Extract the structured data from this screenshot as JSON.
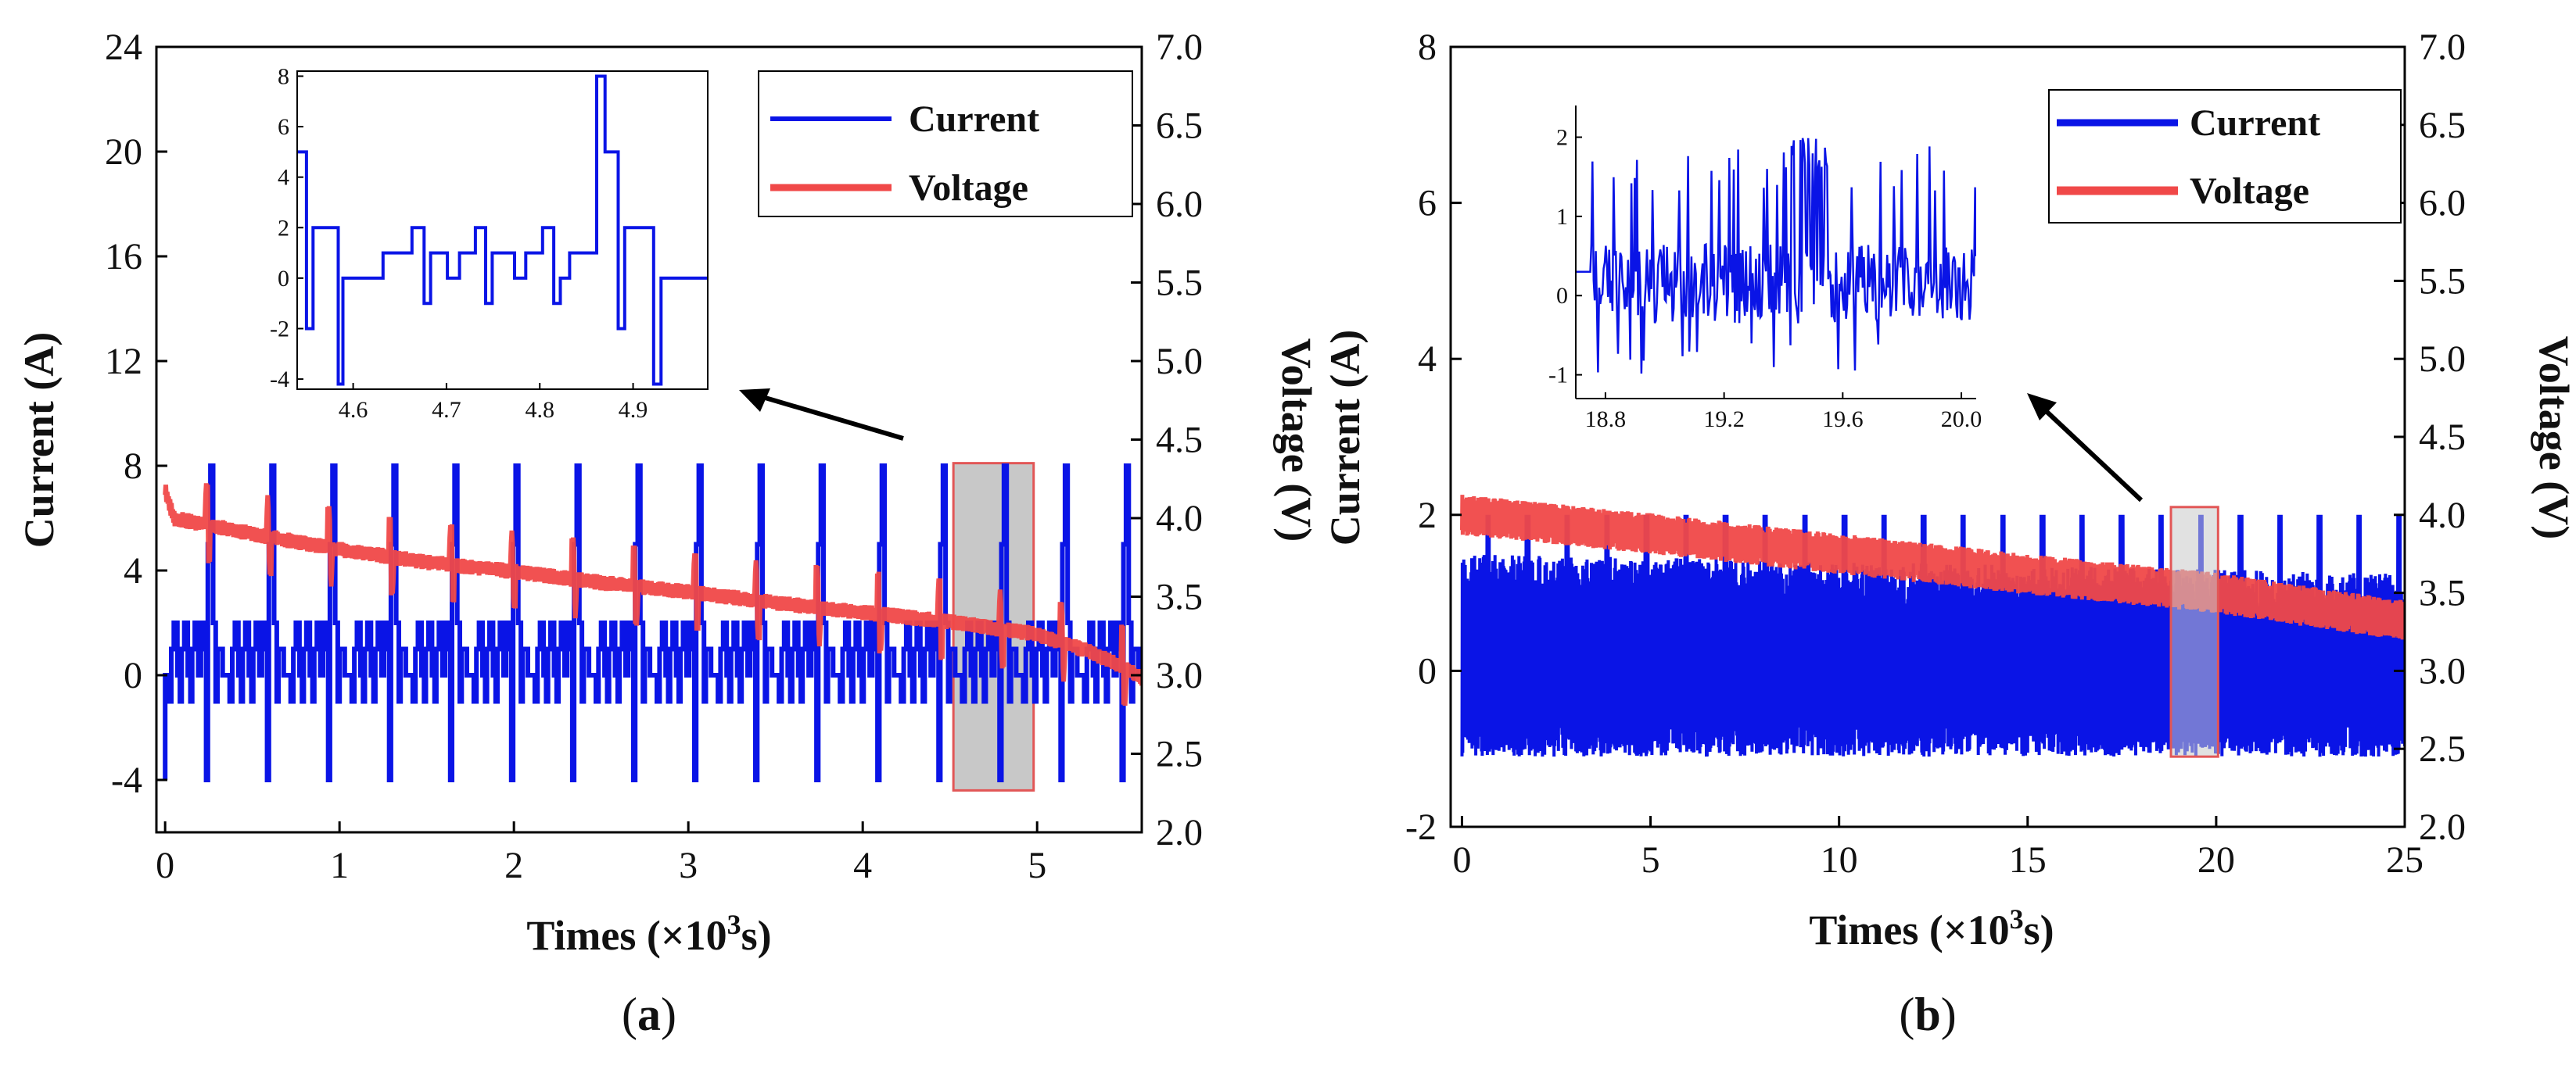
{
  "colors": {
    "current": "#0a14e6",
    "voltage": "#f04848",
    "axis": "#000000",
    "highlight_fill": "#c8c8c8",
    "highlight_edge": "#e25656"
  },
  "chart_data": [
    {
      "id": "a",
      "type": "line",
      "caption_paren_open": "(",
      "caption_letter": "a",
      "caption_paren_close": ")",
      "xlabel_pre": "Times (×10",
      "xlabel_sup": "3",
      "xlabel_post": "s)",
      "ylabel_left": "Current (A)",
      "ylabel_right": "Voltage (V)",
      "xlim": [
        -0.05,
        5.6
      ],
      "ylim_left": [
        -6,
        24
      ],
      "ylim_right": [
        2.0,
        7.0
      ],
      "xticks": [
        "0",
        "1",
        "2",
        "3",
        "4",
        "5"
      ],
      "yticks_left": [
        "-4",
        "0",
        "4",
        "8",
        "12",
        "16",
        "20",
        "24"
      ],
      "yticks_right": [
        "2.0",
        "2.5",
        "3.0",
        "3.5",
        "4.0",
        "4.5",
        "5.0",
        "5.5",
        "6.0",
        "6.5",
        "7.0"
      ],
      "legend": [
        "Current",
        "Voltage"
      ],
      "legend_position": "top-right",
      "highlight_region": {
        "x0": 4.52,
        "x1": 4.98,
        "y0": -4.4,
        "y1": 8.1
      },
      "series": [
        {
          "name": "Current",
          "axis": "left",
          "description": "repeating dynamic pulse profile, period ~0.35 (×10^3 s), levels from -4 to 8 A",
          "period": 0.35,
          "profile": [
            [
              0,
              0
            ],
            [
              0.02,
              0
            ],
            [
              0.02,
              -1
            ],
            [
              0.035,
              -1
            ],
            [
              0.035,
              1
            ],
            [
              0.05,
              1
            ],
            [
              0.05,
              2
            ],
            [
              0.07,
              2
            ],
            [
              0.07,
              0
            ],
            [
              0.085,
              0
            ],
            [
              0.085,
              -1
            ],
            [
              0.095,
              -1
            ],
            [
              0.095,
              1
            ],
            [
              0.11,
              1
            ],
            [
              0.11,
              2
            ],
            [
              0.13,
              2
            ],
            [
              0.13,
              0
            ],
            [
              0.145,
              0
            ],
            [
              0.145,
              -1
            ],
            [
              0.155,
              -1
            ],
            [
              0.155,
              1
            ],
            [
              0.17,
              1
            ],
            [
              0.17,
              2
            ],
            [
              0.19,
              2
            ],
            [
              0.19,
              0
            ],
            [
              0.205,
              0
            ],
            [
              0.205,
              1
            ],
            [
              0.215,
              1
            ],
            [
              0.215,
              2
            ],
            [
              0.235,
              2
            ],
            [
              0.235,
              -4
            ],
            [
              0.245,
              -4
            ],
            [
              0.245,
              5
            ],
            [
              0.26,
              5
            ],
            [
              0.26,
              8
            ],
            [
              0.275,
              8
            ],
            [
              0.275,
              2
            ],
            [
              0.29,
              2
            ],
            [
              0.29,
              -1
            ],
            [
              0.3,
              -1
            ],
            [
              0.3,
              1
            ],
            [
              0.33,
              1
            ],
            [
              0.33,
              0
            ],
            [
              0.35,
              0
            ]
          ],
          "start": {
            "x": 0.0,
            "y": -4
          }
        },
        {
          "name": "Voltage",
          "axis": "right",
          "description": "declining from ~4.1 V to ~3.0 V with ripple; spikes at each pulse",
          "points": [
            [
              0.0,
              4.18
            ],
            [
              0.05,
              4.0
            ],
            [
              0.5,
              3.9
            ],
            [
              1.0,
              3.8
            ],
            [
              1.5,
              3.72
            ],
            [
              2.0,
              3.66
            ],
            [
              2.5,
              3.59
            ],
            [
              3.0,
              3.53
            ],
            [
              3.5,
              3.46
            ],
            [
              4.0,
              3.4
            ],
            [
              4.5,
              3.34
            ],
            [
              5.0,
              3.26
            ],
            [
              5.3,
              3.15
            ],
            [
              5.5,
              3.05
            ],
            [
              5.6,
              2.98
            ]
          ],
          "ripple": 0.05,
          "pulse_spike_up": 0.22,
          "pulse_spike_down": 0.2
        }
      ],
      "inset": {
        "xlim": [
          4.54,
          4.98
        ],
        "ylim": [
          -4.4,
          8.2
        ],
        "xticks": [
          "4.6",
          "4.7",
          "4.8",
          "4.9"
        ],
        "yticks": [
          "-4",
          "-2",
          "0",
          "2",
          "4",
          "6",
          "8"
        ],
        "series": {
          "name": "Current",
          "points": [
            [
              4.54,
              5
            ],
            [
              4.55,
              5
            ],
            [
              4.55,
              -2
            ],
            [
              4.557,
              -2
            ],
            [
              4.557,
              2
            ],
            [
              4.584,
              2
            ],
            [
              4.584,
              -4.2
            ],
            [
              4.589,
              -4.2
            ],
            [
              4.589,
              0
            ],
            [
              4.632,
              0
            ],
            [
              4.632,
              1
            ],
            [
              4.663,
              1
            ],
            [
              4.663,
              2
            ],
            [
              4.676,
              2
            ],
            [
              4.676,
              -1
            ],
            [
              4.683,
              -1
            ],
            [
              4.683,
              1
            ],
            [
              4.701,
              1
            ],
            [
              4.701,
              0
            ],
            [
              4.714,
              0
            ],
            [
              4.714,
              1
            ],
            [
              4.731,
              1
            ],
            [
              4.731,
              2
            ],
            [
              4.742,
              2
            ],
            [
              4.742,
              -1
            ],
            [
              4.749,
              -1
            ],
            [
              4.749,
              1
            ],
            [
              4.773,
              1
            ],
            [
              4.773,
              0
            ],
            [
              4.785,
              0
            ],
            [
              4.785,
              1
            ],
            [
              4.803,
              1
            ],
            [
              4.803,
              2
            ],
            [
              4.815,
              2
            ],
            [
              4.815,
              -1
            ],
            [
              4.822,
              -1
            ],
            [
              4.822,
              0
            ],
            [
              4.832,
              0
            ],
            [
              4.832,
              1
            ],
            [
              4.861,
              1
            ],
            [
              4.861,
              8
            ],
            [
              4.87,
              8
            ],
            [
              4.87,
              5
            ],
            [
              4.884,
              5
            ],
            [
              4.884,
              -2
            ],
            [
              4.891,
              -2
            ],
            [
              4.891,
              2
            ],
            [
              4.922,
              2
            ],
            [
              4.922,
              -4.2
            ],
            [
              4.93,
              -4.2
            ],
            [
              4.93,
              0
            ],
            [
              4.98,
              0
            ]
          ]
        }
      }
    },
    {
      "id": "b",
      "type": "line",
      "caption_paren_open": "(",
      "caption_letter": "b",
      "caption_paren_close": ")",
      "xlabel_pre": "Times (×10",
      "xlabel_sup": "3",
      "xlabel_post": "s)",
      "ylabel_left": "Current (A)",
      "ylabel_right": "Voltage (V)",
      "xlim": [
        -0.3,
        25
      ],
      "ylim_left": [
        -2,
        8
      ],
      "ylim_right": [
        2.0,
        7.0
      ],
      "xticks": [
        "0",
        "5",
        "10",
        "15",
        "20",
        "25"
      ],
      "yticks_left": [
        "-2",
        "0",
        "2",
        "4",
        "6",
        "8"
      ],
      "yticks_right": [
        "2.0",
        "2.5",
        "3.0",
        "3.5",
        "4.0",
        "4.5",
        "5.0",
        "5.5",
        "6.0",
        "6.5",
        "7.0"
      ],
      "legend": [
        "Current",
        "Voltage"
      ],
      "legend_position": "top-right",
      "highlight_region": {
        "x0": 18.8,
        "x1": 20.05,
        "y0": -1.1,
        "y1": 2.1
      },
      "series": [
        {
          "name": "Current",
          "axis": "left",
          "description": "dense noisy current between about -1.1 and 1.5 A with periodic 2 A peaks",
          "band": [
            -1.1,
            1.5
          ],
          "peak": 2.0,
          "peak_period": 1.05
        },
        {
          "name": "Voltage",
          "axis": "right",
          "description": "declining from ~4.0 V to ~3.3 V, ripple band ~0.2 V",
          "points": [
            [
              0.0,
              4.0
            ],
            [
              5,
              3.88
            ],
            [
              10,
              3.75
            ],
            [
              15,
              3.62
            ],
            [
              20,
              3.5
            ],
            [
              25,
              3.32
            ]
          ],
          "ripple": 0.13
        }
      ],
      "inset": {
        "xlim": [
          18.7,
          20.05
        ],
        "ylim": [
          -1.3,
          2.4
        ],
        "xticks": [
          "18.8",
          "19.2",
          "19.6",
          "20.0"
        ],
        "yticks": [
          "-1",
          "0",
          "1",
          "2"
        ],
        "series": {
          "name": "Current",
          "description": "noisy spikes between -1 and 2 A"
        }
      }
    }
  ]
}
